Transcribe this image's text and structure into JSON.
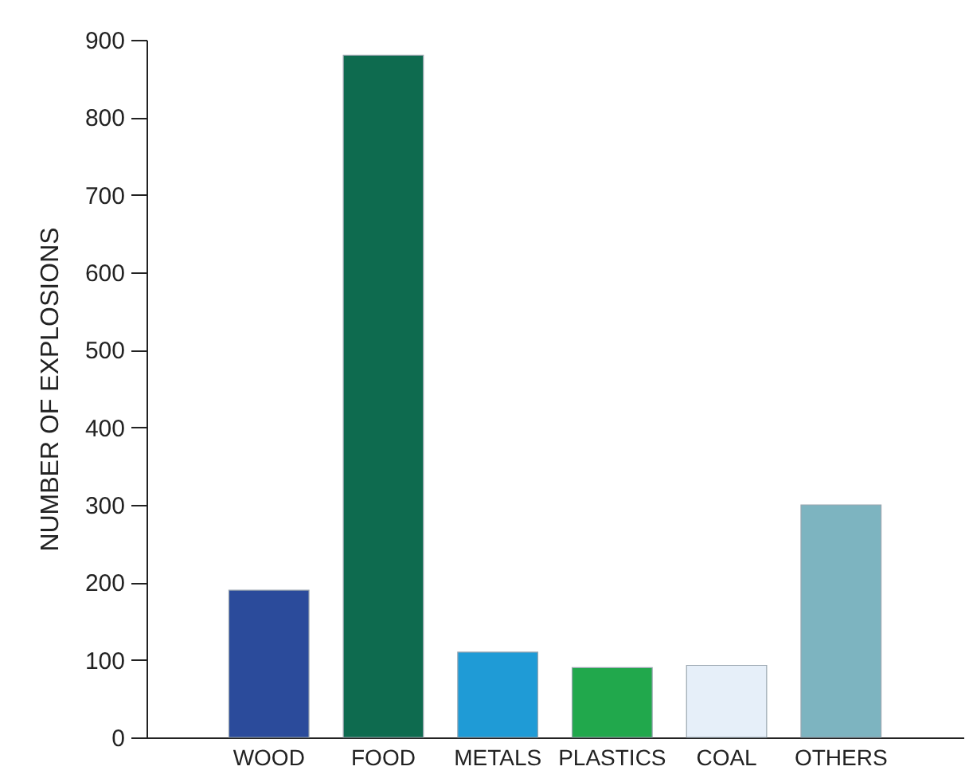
{
  "chart_data": {
    "type": "bar",
    "ylabel": "NUMBER OF EXPLOSIONS",
    "categories": [
      "WOOD",
      "FOOD",
      "METALS",
      "PLASTICS",
      "COAL",
      "OTHERS"
    ],
    "values": [
      190,
      880,
      110,
      90,
      93,
      300
    ],
    "colors": [
      "#2b4b9b",
      "#0e6b4f",
      "#1f9bd6",
      "#21a84c",
      "#e6eff9",
      "#7db4c0"
    ],
    "ylim": [
      0,
      900
    ],
    "yticks": [
      0,
      100,
      200,
      300,
      400,
      500,
      600,
      700,
      800,
      900
    ],
    "grid": false
  }
}
